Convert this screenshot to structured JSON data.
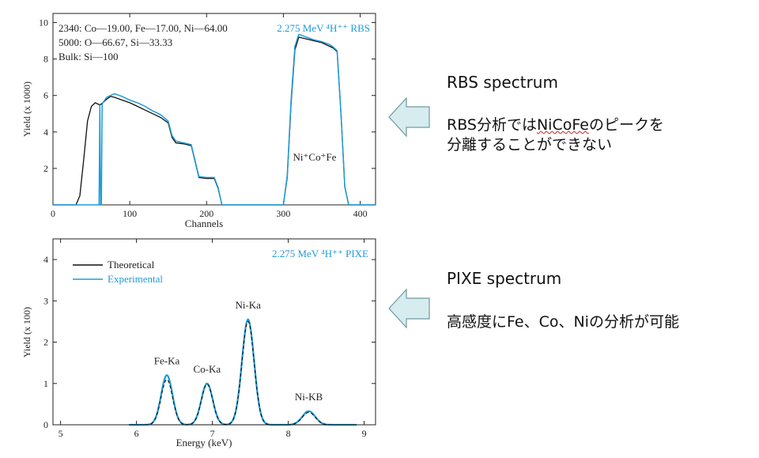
{
  "colors": {
    "theoretical": "#111111",
    "experimental": "#1f9bd8",
    "arrow_fill": "#d6ecef",
    "arrow_stroke": "#6f9aa2"
  },
  "chart_data": [
    {
      "type": "line",
      "title": "",
      "annotation_tag": "2.275 MeV ⁴H⁺⁺ RBS",
      "layers": [
        "2340:  Co—19.00, Fe—17.00, Ni—64.00",
        "5000:  O—66.67, Si—33.33",
        "Bulk:  Si—100"
      ],
      "peak_label": "Ni⁺Co⁺Fe",
      "xlabel": "Channels",
      "ylabel": "Yield (x 1000)",
      "xlim": [
        0,
        420
      ],
      "ylim": [
        0,
        10.5
      ],
      "xticks": [
        0,
        100,
        200,
        300,
        400
      ],
      "yticks": [
        2,
        4,
        6,
        8,
        10
      ],
      "series": [
        {
          "id": "theoretical",
          "x": [
            0,
            30,
            35,
            40,
            45,
            50,
            55,
            60,
            62,
            65,
            70,
            75,
            80,
            90,
            100,
            110,
            120,
            130,
            140,
            150,
            155,
            160,
            170,
            180,
            190,
            200,
            210,
            215,
            220,
            300,
            305,
            310,
            315,
            320,
            330,
            340,
            350,
            360,
            365,
            370,
            375,
            380,
            385,
            420
          ],
          "y": [
            0,
            0,
            0.5,
            2.5,
            4.6,
            5.4,
            5.6,
            5.5,
            5.5,
            5.6,
            5.8,
            5.95,
            5.9,
            5.75,
            5.6,
            5.4,
            5.2,
            5.0,
            4.8,
            4.5,
            3.7,
            3.4,
            3.35,
            3.25,
            1.5,
            1.45,
            1.45,
            0.9,
            0,
            0,
            1.5,
            5.5,
            8.5,
            9.2,
            9.1,
            9.0,
            8.9,
            8.7,
            8.6,
            8.4,
            5.0,
            1.0,
            0,
            0
          ]
        },
        {
          "id": "experimental",
          "x": [
            0,
            60,
            61,
            62,
            63,
            64,
            65,
            70,
            75,
            80,
            90,
            100,
            110,
            120,
            130,
            140,
            150,
            155,
            160,
            170,
            180,
            190,
            200,
            210,
            215,
            220,
            300,
            305,
            310,
            315,
            320,
            330,
            340,
            350,
            360,
            365,
            370,
            375,
            380,
            385,
            420
          ],
          "y": [
            0,
            0,
            5.5,
            0,
            0,
            5.5,
            5.6,
            5.9,
            6.0,
            6.1,
            5.95,
            5.75,
            5.6,
            5.4,
            5.15,
            4.95,
            4.6,
            3.8,
            3.5,
            3.4,
            3.3,
            1.55,
            1.5,
            1.5,
            0.95,
            0,
            0,
            1.6,
            5.7,
            8.7,
            9.35,
            9.2,
            9.05,
            8.95,
            8.8,
            8.65,
            8.45,
            5.0,
            1.0,
            0,
            0
          ]
        }
      ]
    },
    {
      "type": "line",
      "title": "",
      "annotation_tag": "2.275 MeV ⁴H⁺⁺ PIXE",
      "xlabel": "Energy (keV)",
      "ylabel": "Yield (x 100)",
      "xlim": [
        4.9,
        9.15
      ],
      "ylim": [
        0,
        4.5
      ],
      "xticks": [
        5,
        6,
        7,
        8,
        9
      ],
      "yticks": [
        0,
        1,
        2,
        3,
        4
      ],
      "legend": {
        "position": "top-left",
        "entries": [
          "Theoretical",
          "Experimental"
        ]
      },
      "peaks": [
        {
          "label": "Fe-Ka",
          "x": 6.4,
          "theoretical": 1.1,
          "experimental": 1.2,
          "sigma": 0.075
        },
        {
          "label": "Co-Ka",
          "x": 6.93,
          "theoretical": 0.98,
          "experimental": 1.0,
          "sigma": 0.075
        },
        {
          "label": "Ni-Ka",
          "x": 7.47,
          "theoretical": 2.5,
          "experimental": 2.55,
          "sigma": 0.08
        },
        {
          "label": "Ni-KB",
          "x": 8.27,
          "theoretical": 0.3,
          "experimental": 0.33,
          "sigma": 0.085
        }
      ]
    }
  ],
  "notes": {
    "rbs_title": "RBS spectrum",
    "rbs_text_prefix": "RBS分析では",
    "rbs_text_underlined": "NiCoFe",
    "rbs_text_rest": "のピークを",
    "rbs_text_line2": "分離することができない",
    "pixe_title": "PIXE spectrum",
    "pixe_text": "高感度にFe、Co、Niの分析が可能"
  }
}
